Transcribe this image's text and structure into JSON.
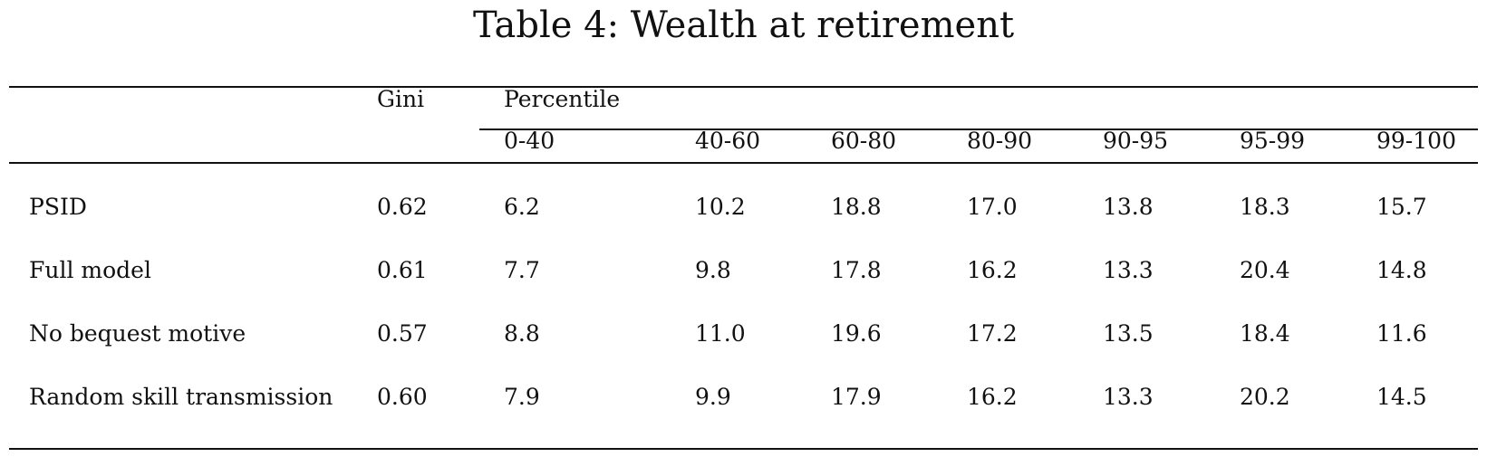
{
  "table": {
    "title": "Table 4: Wealth at retirement",
    "header": {
      "gini": "Gini",
      "percentile_group": "Percentile",
      "percentiles": [
        "0-40",
        "40-60",
        "60-80",
        "80-90",
        "90-95",
        "95-99",
        "99-100"
      ]
    },
    "rows": [
      {
        "label": "PSID",
        "gini": "0.62",
        "values": [
          "6.2",
          "10.2",
          "18.8",
          "17.0",
          "13.8",
          "18.3",
          "15.7"
        ]
      },
      {
        "label": "Full model",
        "gini": "0.61",
        "values": [
          "7.7",
          "9.8",
          "17.8",
          "16.2",
          "13.3",
          "20.4",
          "14.8"
        ]
      },
      {
        "label": "No bequest motive",
        "gini": "0.57",
        "values": [
          "8.8",
          "11.0",
          "19.6",
          "17.2",
          "13.5",
          "18.4",
          "11.6"
        ]
      },
      {
        "label": "Random skill transmission",
        "gini": "0.60",
        "values": [
          "7.9",
          "9.9",
          "17.9",
          "16.2",
          "13.3",
          "20.2",
          "14.5"
        ]
      }
    ]
  }
}
